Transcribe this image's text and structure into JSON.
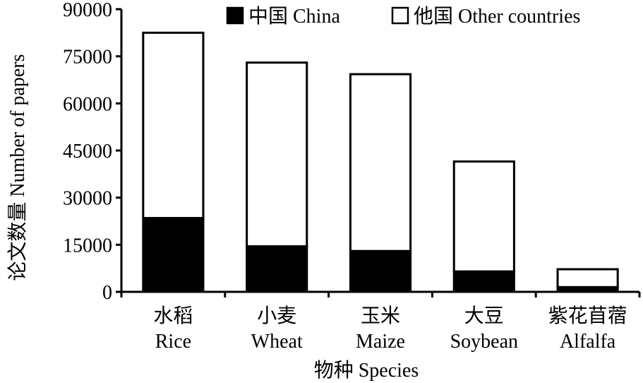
{
  "chart_data": {
    "type": "bar",
    "stacked": true,
    "categories": [
      {
        "zh": "水稻",
        "en": "Rice"
      },
      {
        "zh": "小麦",
        "en": "Wheat"
      },
      {
        "zh": "玉米",
        "en": "Maize"
      },
      {
        "zh": "大豆",
        "en": "Soybean"
      },
      {
        "zh": "紫花苜蓿",
        "en": "Alfalfa"
      }
    ],
    "series": [
      {
        "name": "中国 China",
        "color": "#000000",
        "values": [
          23500,
          14500,
          13000,
          6500,
          1500
        ]
      },
      {
        "name": "他国 Other countries",
        "color": "#ffffff",
        "values": [
          59000,
          58500,
          56300,
          35000,
          5700
        ]
      }
    ],
    "xlabel": "物种 Species",
    "ylabel": "论文数量 Number of papers",
    "ylim": [
      0,
      90000
    ],
    "yticks": [
      0,
      15000,
      30000,
      45000,
      60000,
      75000,
      90000
    ],
    "legend_position": "top",
    "grid": false
  }
}
